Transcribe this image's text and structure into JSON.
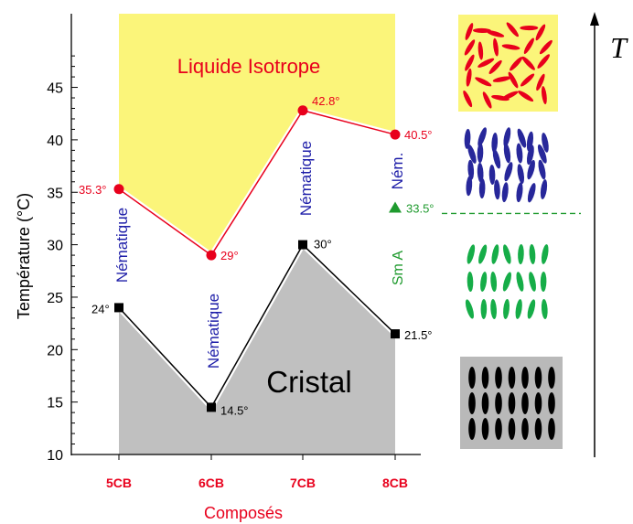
{
  "chart_data": {
    "type": "line",
    "title": "",
    "xlabel": "Composés",
    "ylabel": "Température (°C)",
    "ylim": [
      10,
      48
    ],
    "yticks": [
      10,
      15,
      20,
      25,
      30,
      35,
      40,
      45
    ],
    "categories": [
      "5CB",
      "6CB",
      "7CB",
      "8CB"
    ],
    "series": [
      {
        "name": "",
        "role": "clearing",
        "values": [
          35.3,
          29,
          42.8,
          40.5
        ],
        "labels": [
          "35.3°",
          "29°",
          "42.8°",
          "40.5°"
        ],
        "color": "#e8001c",
        "marker": "circle"
      },
      {
        "name": "",
        "role": "melting",
        "values": [
          24,
          14.5,
          30,
          21.5
        ],
        "labels": [
          "24°",
          "14.5°",
          "30°",
          "21.5°"
        ],
        "color": "#000000",
        "marker": "square"
      }
    ],
    "sma_point": {
      "category": "8CB",
      "value": 33.5,
      "label": "33.5°",
      "color": "#1f9a2e"
    },
    "regions": {
      "isotropic": {
        "label": "Liquide Isotrope",
        "color": "#fbf57a",
        "text_color": "#e8001c"
      },
      "crystal": {
        "label": "Cristal",
        "color": "#c0c0c0",
        "text_color": "#000000"
      }
    },
    "phase_labels": [
      {
        "category": "5CB",
        "text": "Nématique"
      },
      {
        "category": "6CB",
        "text": "Nématique"
      },
      {
        "category": "7CB",
        "text": "Nématique"
      },
      {
        "category": "8CB",
        "text": "Ném.",
        "range": "upper"
      },
      {
        "category": "8CB",
        "text": "Sm A",
        "range": "lower"
      }
    ],
    "temperature_axis_label": "T",
    "grid": false,
    "legend": "none",
    "colors": {
      "isotropic_molecules": "#e8001c",
      "nematic_molecules": "#27279a",
      "smectic_molecules": "#16ad48",
      "crystal_molecules": "#000000",
      "crystal_box": "#b9b9b9",
      "iso_box": "#fbf57a",
      "sma_line": "#1f9a2e"
    }
  }
}
